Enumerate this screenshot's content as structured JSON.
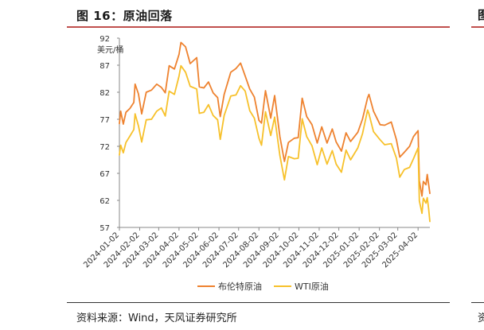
{
  "figure": {
    "title": "图 16：原油回落",
    "source": "资料来源：Wind，天风证券研究所",
    "edge_title_fragment": "图",
    "edge_source_fragment": "资"
  },
  "colors": {
    "brent": "#ee822f",
    "wti": "#f7c12b",
    "accent_rule": "#c0504d"
  },
  "chart_data": {
    "type": "line",
    "title": "图 16：原油回落",
    "ylabel": "美元/桶",
    "xlabel": "",
    "ylim": [
      57,
      92
    ],
    "yticks": [
      57,
      62,
      67,
      72,
      77,
      82,
      87,
      92
    ],
    "xlim": [
      "2024-01-02",
      "2025-04-20"
    ],
    "xticks": [
      "2024-01-02",
      "2024-02-02",
      "2024-03-02",
      "2024-04-02",
      "2024-05-02",
      "2024-06-02",
      "2024-07-02",
      "2024-08-02",
      "2024-09-02",
      "2024-10-02",
      "2024-11-02",
      "2024-12-02",
      "2025-01-02",
      "2025-02-02",
      "2025-03-02",
      "2025-04-02"
    ],
    "legend": "bottom",
    "series": [
      {
        "name": "布伦特原油",
        "color": "#ee822f",
        "points": [
          [
            "2024-01-02",
            76.2
          ],
          [
            "2024-01-04",
            78.5
          ],
          [
            "2024-01-08",
            76.1
          ],
          [
            "2024-01-12",
            78.3
          ],
          [
            "2024-01-18",
            79.0
          ],
          [
            "2024-01-24",
            80.1
          ],
          [
            "2024-01-26",
            83.5
          ],
          [
            "2024-01-31",
            81.7
          ],
          [
            "2024-02-05",
            78.0
          ],
          [
            "2024-02-12",
            82.0
          ],
          [
            "2024-02-20",
            82.4
          ],
          [
            "2024-02-28",
            83.5
          ],
          [
            "2024-03-06",
            82.9
          ],
          [
            "2024-03-12",
            81.9
          ],
          [
            "2024-03-18",
            86.9
          ],
          [
            "2024-03-26",
            86.3
          ],
          [
            "2024-04-02",
            89.0
          ],
          [
            "2024-04-05",
            91.2
          ],
          [
            "2024-04-12",
            90.4
          ],
          [
            "2024-04-19",
            87.3
          ],
          [
            "2024-04-29",
            88.4
          ],
          [
            "2024-05-03",
            83.0
          ],
          [
            "2024-05-10",
            82.8
          ],
          [
            "2024-05-17",
            83.9
          ],
          [
            "2024-05-24",
            81.9
          ],
          [
            "2024-05-31",
            81.0
          ],
          [
            "2024-06-04",
            77.5
          ],
          [
            "2024-06-10",
            81.6
          ],
          [
            "2024-06-20",
            85.7
          ],
          [
            "2024-06-28",
            86.4
          ],
          [
            "2024-07-05",
            87.4
          ],
          [
            "2024-07-12",
            85.0
          ],
          [
            "2024-07-19",
            82.6
          ],
          [
            "2024-07-26",
            81.1
          ],
          [
            "2024-08-02",
            76.8
          ],
          [
            "2024-08-06",
            76.3
          ],
          [
            "2024-08-12",
            82.3
          ],
          [
            "2024-08-20",
            77.2
          ],
          [
            "2024-08-26",
            81.4
          ],
          [
            "2024-09-03",
            73.8
          ],
          [
            "2024-09-10",
            69.2
          ],
          [
            "2024-09-16",
            72.7
          ],
          [
            "2024-09-25",
            73.5
          ],
          [
            "2024-10-01",
            73.6
          ],
          [
            "2024-10-07",
            80.9
          ],
          [
            "2024-10-14",
            77.5
          ],
          [
            "2024-10-22",
            76.0
          ],
          [
            "2024-10-30",
            72.6
          ],
          [
            "2024-11-06",
            75.6
          ],
          [
            "2024-11-14",
            72.6
          ],
          [
            "2024-11-22",
            75.2
          ],
          [
            "2024-11-28",
            72.8
          ],
          [
            "2024-12-06",
            71.1
          ],
          [
            "2024-12-13",
            74.5
          ],
          [
            "2024-12-20",
            72.9
          ],
          [
            "2024-12-31",
            74.6
          ],
          [
            "2025-01-07",
            77.0
          ],
          [
            "2025-01-15",
            81.0
          ],
          [
            "2025-01-17",
            81.6
          ],
          [
            "2025-01-24",
            78.5
          ],
          [
            "2025-02-03",
            76.0
          ],
          [
            "2025-02-10",
            75.9
          ],
          [
            "2025-02-20",
            76.5
          ],
          [
            "2025-02-28",
            73.2
          ],
          [
            "2025-03-05",
            70.0
          ],
          [
            "2025-03-12",
            70.9
          ],
          [
            "2025-03-20",
            72.0
          ],
          [
            "2025-03-26",
            73.8
          ],
          [
            "2025-04-02",
            74.9
          ],
          [
            "2025-04-04",
            65.6
          ],
          [
            "2025-04-08",
            62.8
          ],
          [
            "2025-04-10",
            65.5
          ],
          [
            "2025-04-14",
            64.9
          ],
          [
            "2025-04-16",
            66.8
          ],
          [
            "2025-04-18",
            65.0
          ],
          [
            "2025-04-20",
            63.3
          ]
        ]
      },
      {
        "name": "WTI原油",
        "color": "#f7c12b",
        "points": [
          [
            "2024-01-02",
            70.4
          ],
          [
            "2024-01-04",
            72.2
          ],
          [
            "2024-01-08",
            70.8
          ],
          [
            "2024-01-12",
            72.7
          ],
          [
            "2024-01-18",
            73.9
          ],
          [
            "2024-01-24",
            75.1
          ],
          [
            "2024-01-26",
            78.0
          ],
          [
            "2024-01-31",
            75.8
          ],
          [
            "2024-02-05",
            72.8
          ],
          [
            "2024-02-12",
            76.9
          ],
          [
            "2024-02-20",
            77.0
          ],
          [
            "2024-02-28",
            78.5
          ],
          [
            "2024-03-06",
            79.1
          ],
          [
            "2024-03-12",
            77.6
          ],
          [
            "2024-03-18",
            82.2
          ],
          [
            "2024-03-26",
            81.6
          ],
          [
            "2024-04-02",
            85.0
          ],
          [
            "2024-04-05",
            86.9
          ],
          [
            "2024-04-12",
            85.7
          ],
          [
            "2024-04-19",
            83.1
          ],
          [
            "2024-04-29",
            82.6
          ],
          [
            "2024-05-03",
            78.1
          ],
          [
            "2024-05-10",
            78.3
          ],
          [
            "2024-05-17",
            79.7
          ],
          [
            "2024-05-24",
            77.7
          ],
          [
            "2024-05-31",
            76.9
          ],
          [
            "2024-06-04",
            73.3
          ],
          [
            "2024-06-10",
            77.7
          ],
          [
            "2024-06-20",
            81.3
          ],
          [
            "2024-06-28",
            81.5
          ],
          [
            "2024-07-05",
            83.2
          ],
          [
            "2024-07-12",
            82.2
          ],
          [
            "2024-07-19",
            78.6
          ],
          [
            "2024-07-26",
            77.2
          ],
          [
            "2024-08-02",
            73.5
          ],
          [
            "2024-08-06",
            72.2
          ],
          [
            "2024-08-12",
            78.4
          ],
          [
            "2024-08-20",
            74.0
          ],
          [
            "2024-08-26",
            77.4
          ],
          [
            "2024-09-03",
            70.3
          ],
          [
            "2024-09-10",
            65.8
          ],
          [
            "2024-09-16",
            70.1
          ],
          [
            "2024-09-25",
            69.7
          ],
          [
            "2024-10-01",
            69.8
          ],
          [
            "2024-10-07",
            77.1
          ],
          [
            "2024-10-14",
            73.8
          ],
          [
            "2024-10-22",
            72.1
          ],
          [
            "2024-10-30",
            68.6
          ],
          [
            "2024-11-06",
            71.7
          ],
          [
            "2024-11-14",
            68.7
          ],
          [
            "2024-11-22",
            71.2
          ],
          [
            "2024-11-28",
            68.7
          ],
          [
            "2024-12-06",
            67.2
          ],
          [
            "2024-12-13",
            71.3
          ],
          [
            "2024-12-20",
            69.5
          ],
          [
            "2024-12-31",
            71.7
          ],
          [
            "2025-01-07",
            74.3
          ],
          [
            "2025-01-15",
            78.7
          ],
          [
            "2025-01-17",
            78.0
          ],
          [
            "2025-01-24",
            74.7
          ],
          [
            "2025-02-03",
            73.2
          ],
          [
            "2025-02-10",
            72.3
          ],
          [
            "2025-02-20",
            72.5
          ],
          [
            "2025-02-28",
            69.8
          ],
          [
            "2025-03-05",
            66.3
          ],
          [
            "2025-03-12",
            67.7
          ],
          [
            "2025-03-20",
            68.1
          ],
          [
            "2025-03-26",
            69.7
          ],
          [
            "2025-04-02",
            71.7
          ],
          [
            "2025-04-04",
            61.9
          ],
          [
            "2025-04-08",
            59.6
          ],
          [
            "2025-04-10",
            62.4
          ],
          [
            "2025-04-14",
            61.5
          ],
          [
            "2025-04-16",
            62.5
          ],
          [
            "2025-04-18",
            60.5
          ],
          [
            "2025-04-20",
            58.1
          ]
        ]
      }
    ]
  }
}
